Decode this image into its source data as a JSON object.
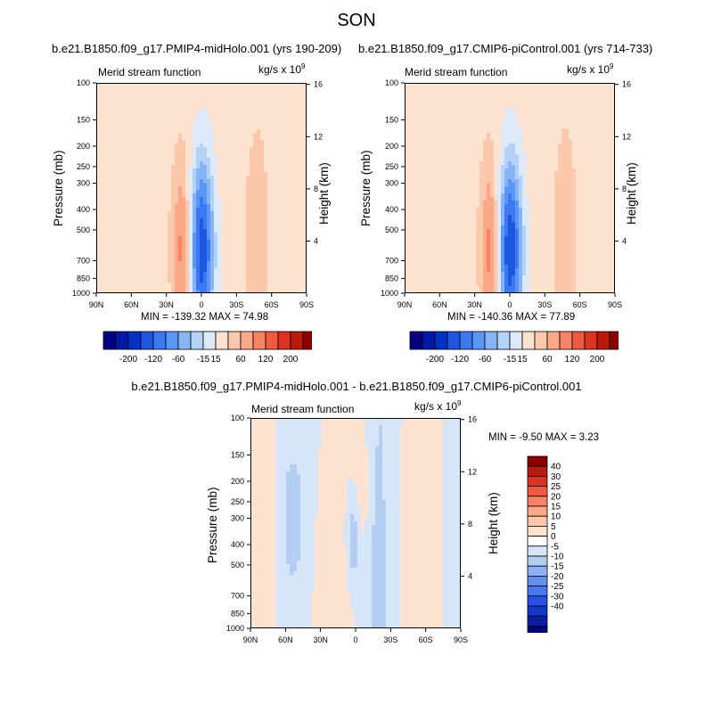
{
  "figure": {
    "title": "SON",
    "diff_title": "b.e21.B1850.f09_g17.PMIP4-midHolo.001 - b.e21.B1850.f09_g17.CMIP6-piControl.001"
  },
  "colors": {
    "main_scale": [
      "#000080",
      "#0019a6",
      "#0032c8",
      "#1e55e1",
      "#3c78f0",
      "#5a96f5",
      "#87b4f5",
      "#b4d2f5",
      "#dce9f8",
      "#fde3cf",
      "#fcc8ab",
      "#faa888",
      "#f78364",
      "#ee5a3f",
      "#dc321f",
      "#bb1a0a",
      "#8c0000"
    ],
    "diff_scale": [
      "#000080",
      "#0a1ea0",
      "#1437c8",
      "#2850e6",
      "#4678f0",
      "#6490f0",
      "#8cb0f0",
      "#b4cdf2",
      "#d6e6f8",
      "#ffffff",
      "#fde3cf",
      "#fcc8ab",
      "#faa888",
      "#f78364",
      "#ee5a3f",
      "#dc321f",
      "#b41e0f",
      "#8c0000"
    ]
  },
  "panels": {
    "left": {
      "title": "b.e21.B1850.f09_g17.PMIP4-midHolo.001 (yrs 190-209)",
      "name": "Merid stream function",
      "unit": "kg/s x 10",
      "unit_exp": "9",
      "stats": "MIN = -139.32   MAX =  74.98"
    },
    "right": {
      "title": "b.e21.B1850.f09_g17.CMIP6-piControl.001 (yrs 714-733)",
      "name": "Merid stream function",
      "unit": "kg/s x 10",
      "unit_exp": "9",
      "stats": "MIN = -140.36   MAX =  77.89"
    },
    "diff": {
      "name": "Merid stream function",
      "unit": "kg/s x 10",
      "unit_exp": "9",
      "stats": "MIN =  -9.50   MAX =   3.23"
    }
  },
  "chart_data": [
    {
      "type": "heatmap",
      "title": "Merid stream function",
      "xlabel": "",
      "ylabel": "Pressure (mb)",
      "y2label": "Height (km)",
      "x_ticks": [
        "90N",
        "60N",
        "30N",
        "0",
        "30S",
        "60S",
        "90S"
      ],
      "y_ticks": [
        100,
        150,
        200,
        250,
        300,
        400,
        500,
        700,
        850,
        1000
      ],
      "y2_ticks": [
        16,
        12,
        8,
        4
      ],
      "y_scale": "log",
      "ylim": [
        1000,
        100
      ],
      "min": -139.32,
      "max": 74.98,
      "colorbar_labels": [
        "-200",
        "-120",
        "-60",
        "-15",
        "15",
        "60",
        "120",
        "200"
      ],
      "features": [
        {
          "lat": 0,
          "pressure": 600,
          "value": -135
        },
        {
          "lat": 15,
          "pressure": 550,
          "value": 70
        },
        {
          "lat": -48,
          "pressure": 500,
          "value": 35
        },
        {
          "lat": 55,
          "pressure": 450,
          "value": -10
        }
      ]
    },
    {
      "type": "heatmap",
      "title": "Merid stream function",
      "xlabel": "",
      "ylabel": "Pressure (mb)",
      "y2label": "Height (km)",
      "x_ticks": [
        "90N",
        "60N",
        "30N",
        "0",
        "30S",
        "60S",
        "90S"
      ],
      "y_ticks": [
        100,
        150,
        200,
        250,
        300,
        400,
        500,
        700,
        850,
        1000
      ],
      "y2_ticks": [
        16,
        12,
        8,
        4
      ],
      "y_scale": "log",
      "ylim": [
        1000,
        100
      ],
      "min": -140.36,
      "max": 77.89,
      "colorbar_labels": [
        "-200",
        "-120",
        "-60",
        "-15",
        "15",
        "60",
        "120",
        "200"
      ],
      "features": [
        {
          "lat": 0,
          "pressure": 600,
          "value": -136
        },
        {
          "lat": 15,
          "pressure": 550,
          "value": 72
        },
        {
          "lat": -48,
          "pressure": 500,
          "value": 36
        },
        {
          "lat": 55,
          "pressure": 450,
          "value": -11
        }
      ]
    },
    {
      "type": "heatmap",
      "title": "Merid stream function",
      "xlabel": "",
      "ylabel": "Pressure (mb)",
      "y2label": "Height (km)",
      "x_ticks": [
        "90N",
        "60N",
        "30N",
        "0",
        "30S",
        "60S",
        "90S"
      ],
      "y_ticks": [
        100,
        150,
        200,
        250,
        300,
        400,
        500,
        700,
        850,
        1000
      ],
      "y2_ticks": [
        16,
        12,
        8,
        4
      ],
      "y_scale": "log",
      "ylim": [
        1000,
        100
      ],
      "min": -9.5,
      "max": 3.23,
      "colorbar_labels": [
        "40",
        "30",
        "25",
        "20",
        "15",
        "10",
        "5",
        "0",
        "-5",
        "-10",
        "-15",
        "-20",
        "-25",
        "-30",
        "-40"
      ]
    }
  ]
}
